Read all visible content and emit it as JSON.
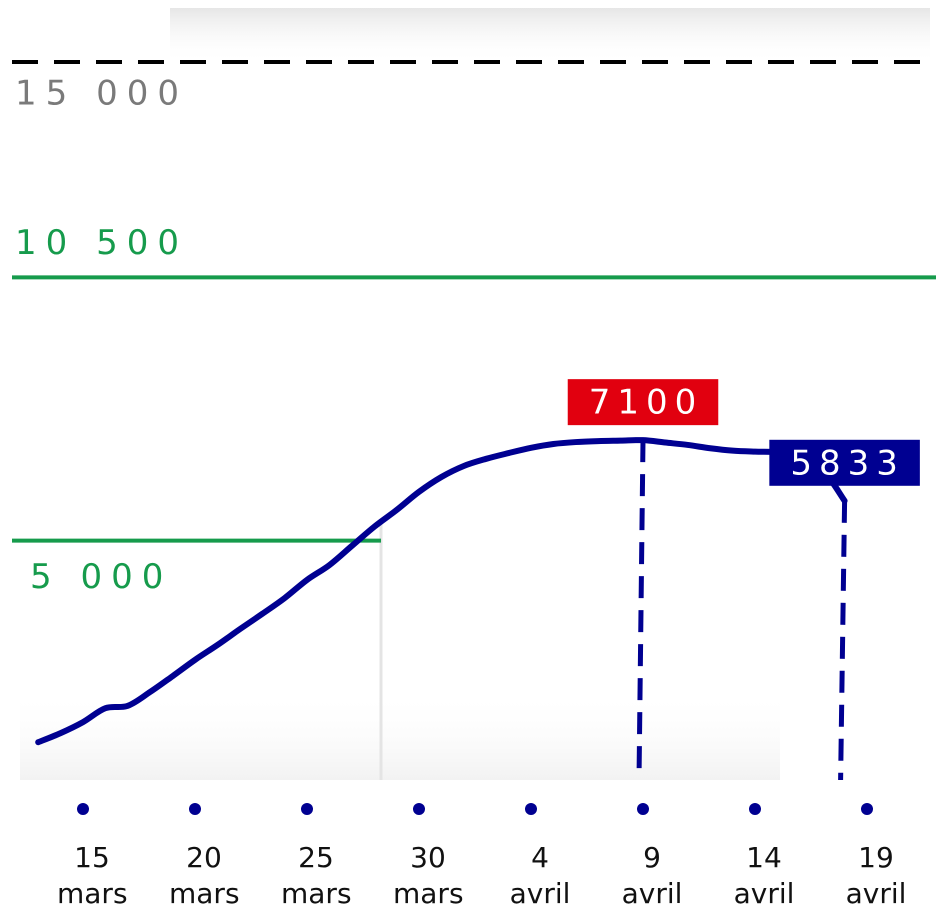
{
  "chart_data": {
    "type": "line",
    "color": "#000091",
    "x": [
      13,
      14,
      15,
      16,
      17,
      18,
      19,
      20,
      21,
      22,
      23,
      24,
      25,
      26,
      27,
      28,
      29,
      30,
      31,
      32,
      33,
      34,
      35,
      36,
      37,
      38,
      39,
      40,
      41,
      42,
      43,
      44,
      45,
      46,
      47,
      48,
      49
    ],
    "values": [
      790,
      980,
      1210,
      1500,
      1550,
      1840,
      2170,
      2510,
      2820,
      3150,
      3470,
      3800,
      4180,
      4490,
      4890,
      5290,
      5640,
      6020,
      6330,
      6560,
      6710,
      6830,
      6940,
      7020,
      7060,
      7080,
      7090,
      7100,
      7050,
      7000,
      6930,
      6880,
      6860,
      6850,
      6800,
      6500,
      5833
    ],
    "xlim": [
      13,
      50
    ],
    "xticks": [
      {
        "value": 15,
        "label": "15 mars"
      },
      {
        "value": 20,
        "label": "20 mars"
      },
      {
        "value": 25,
        "label": "25 mars"
      },
      {
        "value": 30,
        "label": "30 mars"
      },
      {
        "value": 35,
        "label": "4 avril"
      },
      {
        "value": 40,
        "label": "9 avril"
      },
      {
        "value": 45,
        "label": "14 avril"
      },
      {
        "value": 50,
        "label": "19 avril"
      }
    ],
    "ylim": [
      0,
      15000
    ],
    "reference_lines": [
      {
        "value": 15000,
        "label": "15 000",
        "color": "#000000",
        "label_color": "#7a7a7a",
        "dashed": true
      },
      {
        "value": 10500,
        "label": "10 500",
        "color": "#169b4c",
        "label_color": "#169b4c",
        "dashed": false
      },
      {
        "value": 5000,
        "label": "5 000",
        "color": "#169b4c",
        "label_color": "#169b4c",
        "dashed": false
      }
    ],
    "callouts": [
      {
        "x": 40,
        "value": 7100,
        "color": "#e1000f"
      },
      {
        "x": 49,
        "value": 5833,
        "color": "#000091"
      }
    ]
  }
}
